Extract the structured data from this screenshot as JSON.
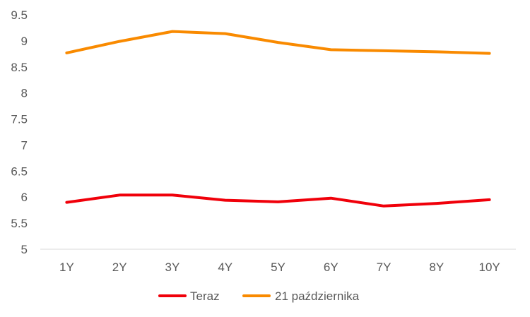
{
  "chart_data": {
    "type": "line",
    "categories": [
      "1Y",
      "2Y",
      "3Y",
      "4Y",
      "5Y",
      "6Y",
      "7Y",
      "8Y",
      "10Y"
    ],
    "series": [
      {
        "name": "Teraz",
        "color": "#f0000a",
        "values": [
          5.9,
          6.04,
          6.04,
          5.94,
          5.91,
          5.98,
          5.83,
          5.88,
          5.95
        ]
      },
      {
        "name": "21 października",
        "color": "#f98a00",
        "values": [
          8.77,
          8.99,
          9.18,
          9.14,
          8.97,
          8.83,
          8.81,
          8.79,
          8.76
        ]
      }
    ],
    "y_ticks": [
      "5",
      "5.5",
      "6",
      "6.5",
      "7",
      "7.5",
      "8",
      "8.5",
      "9",
      "9.5"
    ],
    "ylim": [
      5,
      9.5
    ],
    "grid": false,
    "legend_position": "bottom",
    "axis_color": "#d9d9d9"
  }
}
